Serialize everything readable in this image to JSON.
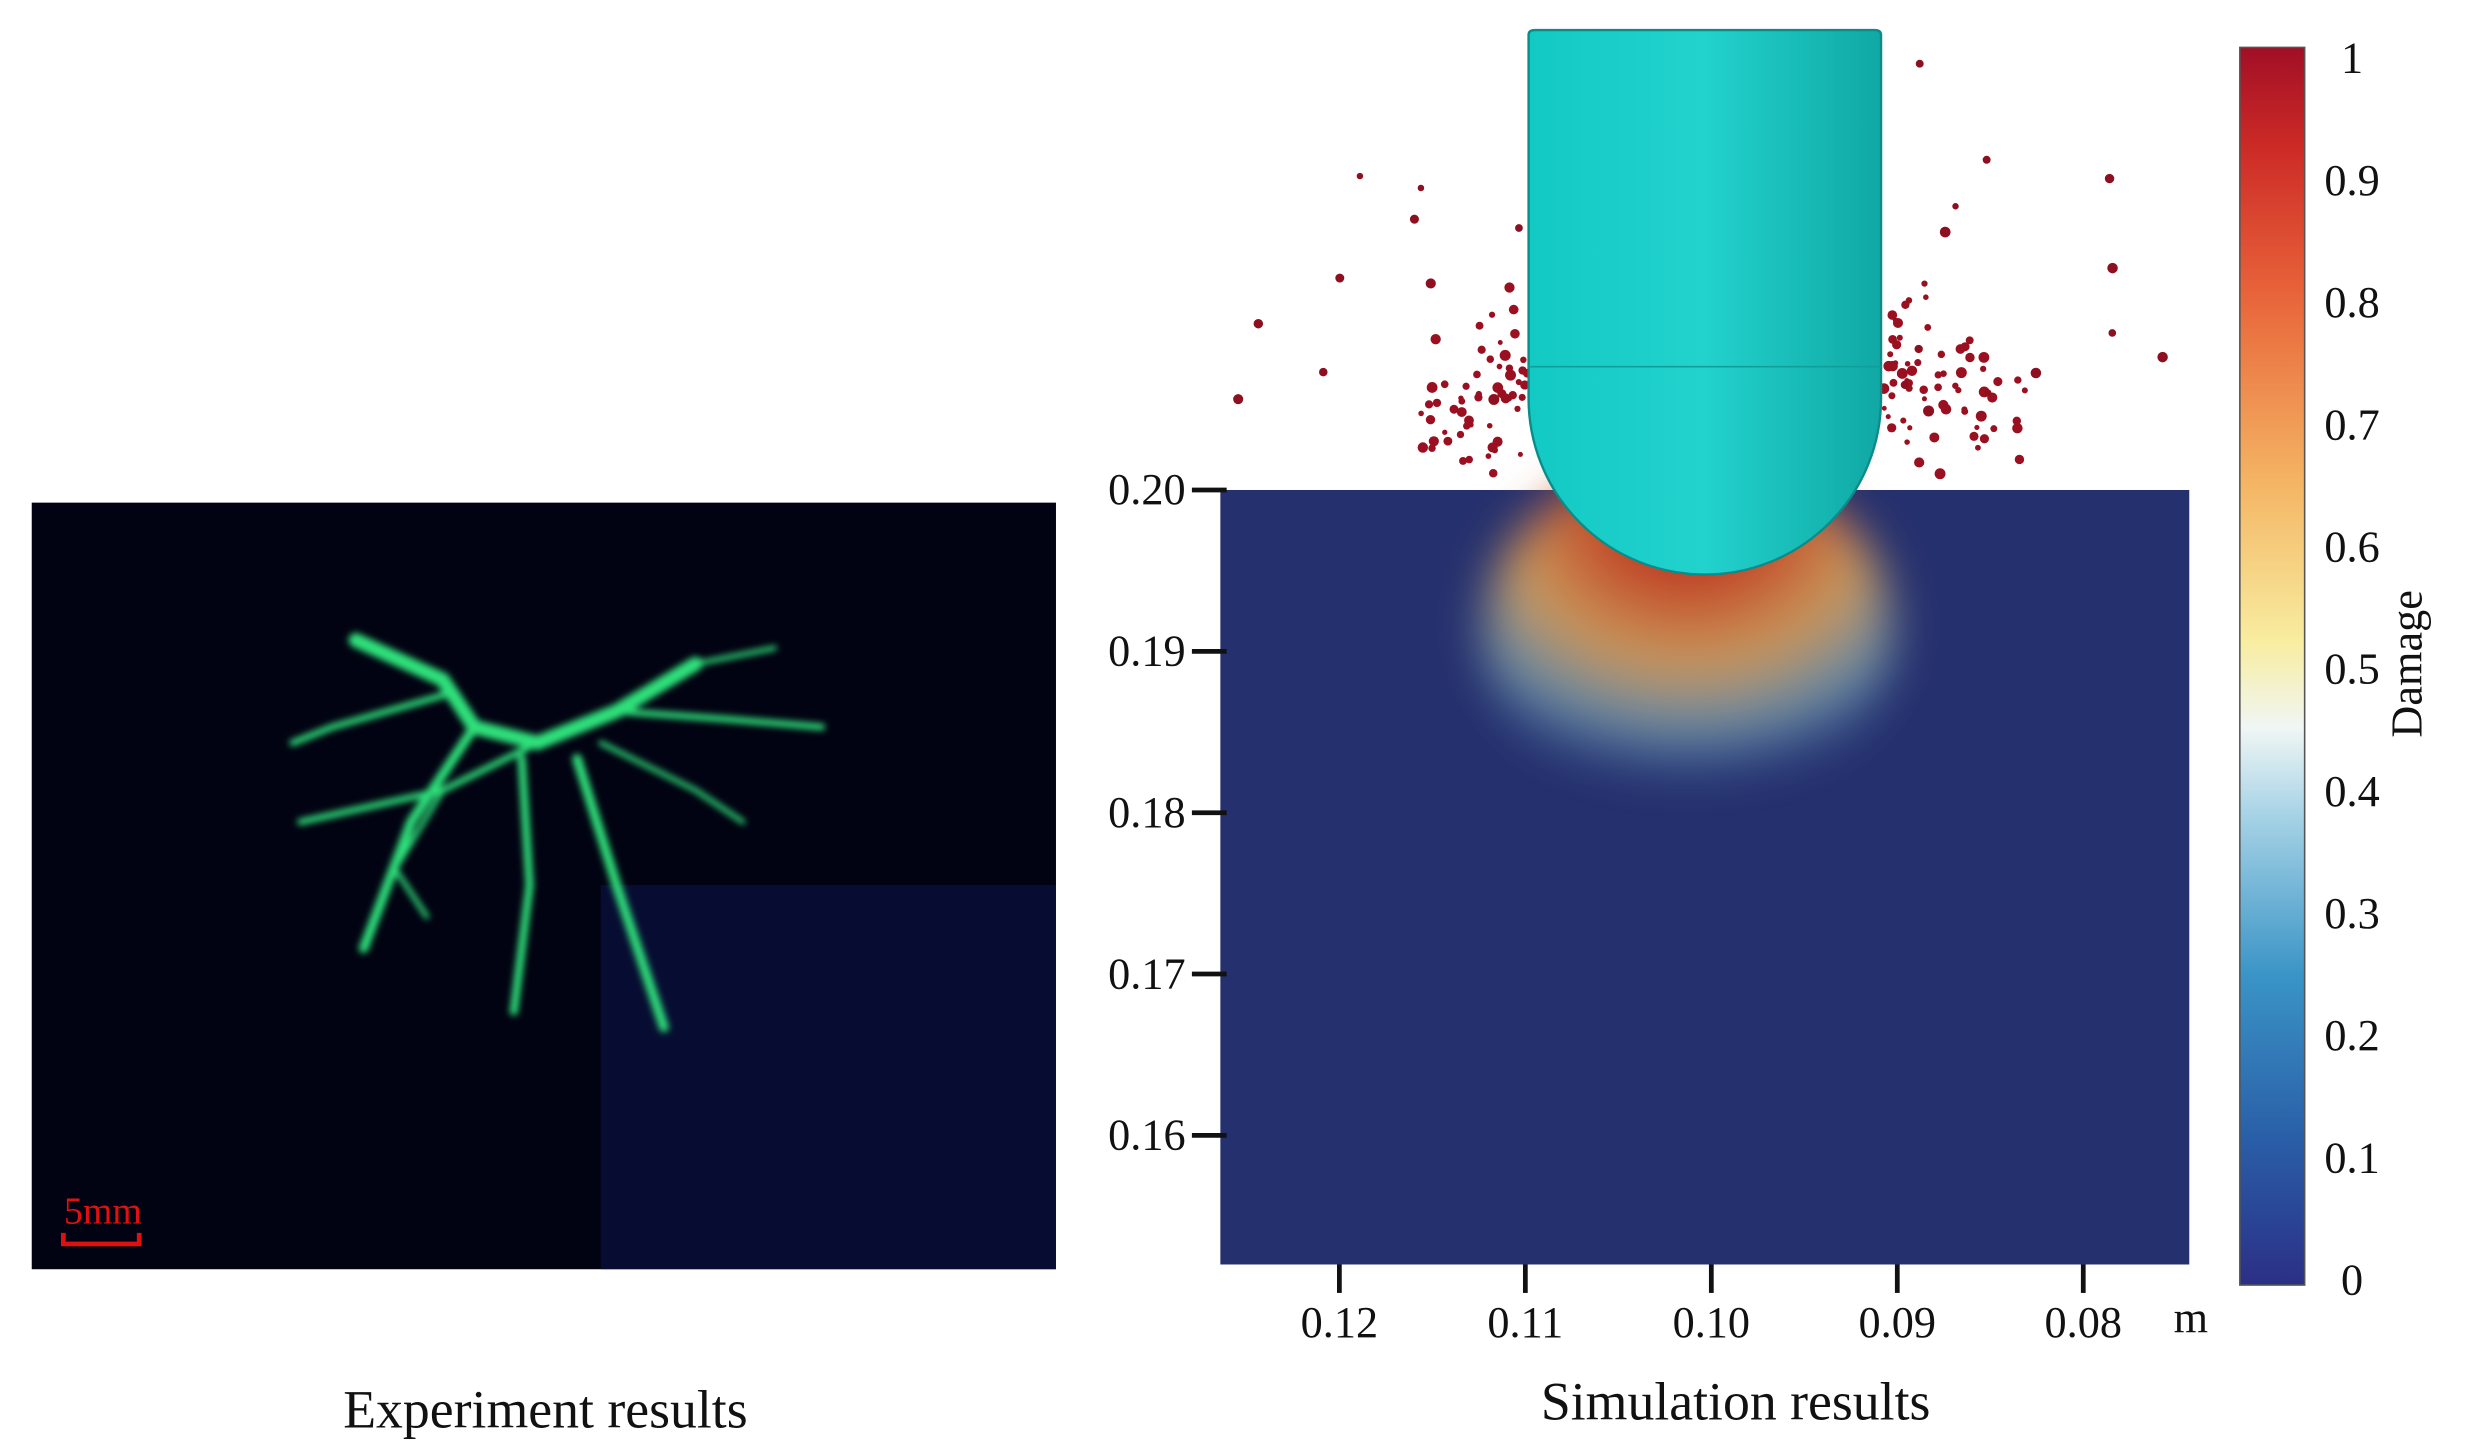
{
  "experiment": {
    "caption": "Experiment results",
    "scale_bar": "5mm"
  },
  "simulation": {
    "caption": "Simulation results",
    "x_unit": "m",
    "xlim": [
      0.1264,
      0.0743
    ],
    "xticks": [
      0.12,
      0.11,
      {
        "value": 0.1,
        "label": "0.10"
      },
      0.09,
      0.08
    ],
    "ylim": [
      0.152,
      0.2
    ],
    "yticks": [
      {
        "value": 0.2,
        "label": "0.20"
      },
      0.19,
      0.18,
      0.17,
      0.16
    ],
    "colorbar": {
      "label": "Damage",
      "lim": [
        0,
        1
      ],
      "ticks": [
        1,
        0.9,
        0.8,
        0.7,
        0.6,
        0.5,
        0.4,
        0.3,
        0.2,
        0.1,
        0
      ]
    }
  }
}
